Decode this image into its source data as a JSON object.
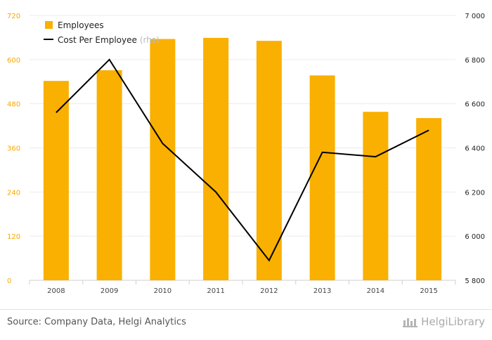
{
  "chart_data": {
    "type": "bar",
    "categories": [
      "2008",
      "2009",
      "2010",
      "2011",
      "2012",
      "2013",
      "2014",
      "2015"
    ],
    "series": [
      {
        "name": "Employees",
        "type": "bar",
        "axis": "left",
        "color": "#f9b000",
        "values": [
          542,
          571,
          656,
          659,
          651,
          557,
          458,
          441
        ]
      },
      {
        "name": "Cost Per Employee",
        "name_suffix": "(rhs)",
        "type": "line",
        "axis": "right",
        "color": "#000000",
        "values": [
          6560,
          6800,
          6420,
          6200,
          5890,
          6380,
          6360,
          6480
        ]
      }
    ],
    "left_axis": {
      "ylim": [
        0,
        720
      ],
      "ticks": [
        "0",
        "120",
        "240",
        "360",
        "480",
        "600",
        "720"
      ],
      "color": "#f5a800"
    },
    "right_axis": {
      "ylim": [
        5800,
        7000
      ],
      "ticks": [
        "5 800",
        "6 000",
        "6 200",
        "6 400",
        "6 600",
        "6 800",
        "7 000"
      ]
    },
    "legend": "top-left",
    "grid": true
  },
  "footer": {
    "source": "Source: Company Data, Helgi Analytics",
    "brand": "HelgiLibrary",
    "brand_icon": "helgi-logo-icon"
  }
}
